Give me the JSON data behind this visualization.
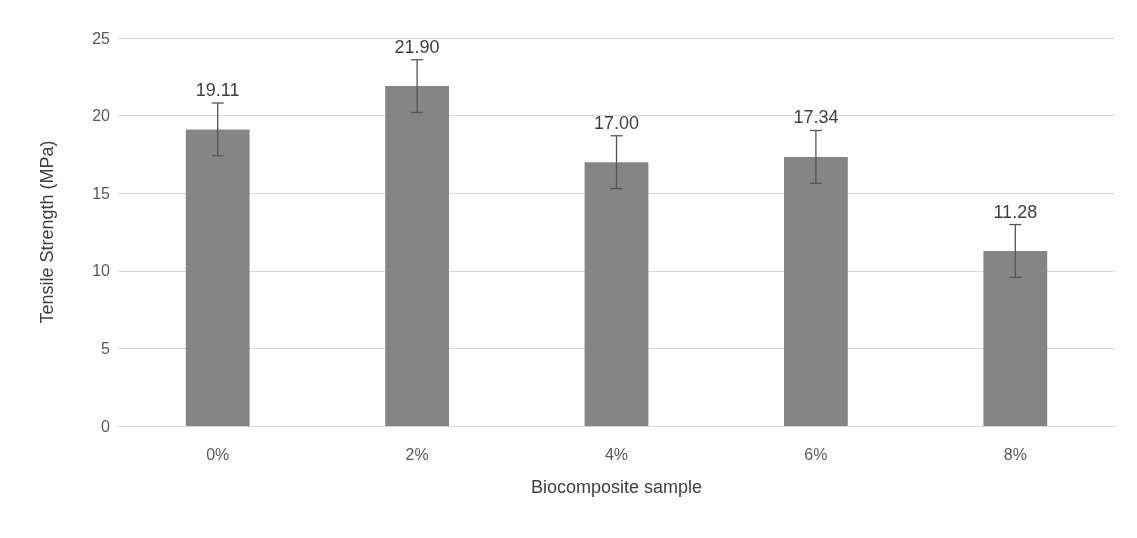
{
  "chart_data": {
    "type": "bar",
    "xlabel": "Biocomposite sample",
    "ylabel": "Tensile Strength (MPa)",
    "categories": [
      "0%",
      "2%",
      "4%",
      "6%",
      "8%"
    ],
    "values": [
      19.11,
      21.9,
      17.0,
      17.34,
      11.28
    ],
    "value_labels": [
      "19.11",
      "21.90",
      "17.00",
      "17.34",
      "11.28"
    ],
    "errors": [
      1.7,
      1.7,
      1.7,
      1.7,
      1.7
    ],
    "color": "#858585",
    "ylim": [
      0,
      25
    ],
    "yticks": [
      0,
      5,
      10,
      15,
      20,
      25
    ],
    "grid": "y"
  }
}
